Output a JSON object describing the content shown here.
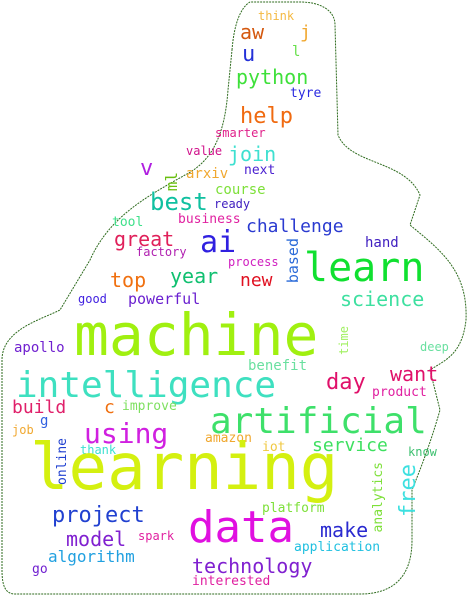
{
  "words": [
    {
      "text": "think",
      "color": "#f4b942"
    },
    {
      "text": "j",
      "color": "#f0a830"
    },
    {
      "text": "aw",
      "color": "#d4580f"
    },
    {
      "text": "l",
      "color": "#66e04a"
    },
    {
      "text": "u",
      "color": "#2431d8"
    },
    {
      "text": "python",
      "color": "#3ee03a"
    },
    {
      "text": "tyre",
      "color": "#2a2ae0"
    },
    {
      "text": "help",
      "color": "#f06a10"
    },
    {
      "text": "smarter",
      "color": "#e0208a"
    },
    {
      "text": "value",
      "color": "#d0108a"
    },
    {
      "text": "join",
      "color": "#3ee0d0"
    },
    {
      "text": "next",
      "color": "#4a20d0"
    },
    {
      "text": "v",
      "color": "#b020e0"
    },
    {
      "text": "ml",
      "color": "#6ac010"
    },
    {
      "text": "arxiv",
      "color": "#f0a830"
    },
    {
      "text": "course",
      "color": "#7ee03a"
    },
    {
      "text": "best",
      "color": "#10c0a0"
    },
    {
      "text": "ready",
      "color": "#4020c0"
    },
    {
      "text": "tool",
      "color": "#3ee08a"
    },
    {
      "text": "business",
      "color": "#e020a0"
    },
    {
      "text": "challenge",
      "color": "#2a3ad0"
    },
    {
      "text": "great",
      "color": "#e0205a"
    },
    {
      "text": "ai",
      "color": "#3020e0"
    },
    {
      "text": "factory",
      "color": "#b020b0"
    },
    {
      "text": "hand",
      "color": "#4020c0"
    },
    {
      "text": "based",
      "color": "#2a6ad8"
    },
    {
      "text": "process",
      "color": "#d020c0"
    },
    {
      "text": "learn",
      "color": "#10e030"
    },
    {
      "text": "year",
      "color": "#10c070"
    },
    {
      "text": "top",
      "color": "#f07010"
    },
    {
      "text": "new",
      "color": "#e01020"
    },
    {
      "text": "good",
      "color": "#4020e0"
    },
    {
      "text": "powerful",
      "color": "#6a20d0"
    },
    {
      "text": "science",
      "color": "#3ee0a0"
    },
    {
      "text": "machine",
      "color": "#a0f010"
    },
    {
      "text": "apollo",
      "color": "#7020d0"
    },
    {
      "text": "time",
      "color": "#a0f060"
    },
    {
      "text": "deep",
      "color": "#6ae0a0"
    },
    {
      "text": "benefit",
      "color": "#6ae0a0"
    },
    {
      "text": "intelligence",
      "color": "#3ee0c0"
    },
    {
      "text": "day",
      "color": "#e0106a"
    },
    {
      "text": "want",
      "color": "#e0106a"
    },
    {
      "text": "product",
      "color": "#e020a0"
    },
    {
      "text": "build",
      "color": "#e0206a"
    },
    {
      "text": "c",
      "color": "#f07010"
    },
    {
      "text": "improve",
      "color": "#7ee060"
    },
    {
      "text": "artificial",
      "color": "#3ee06a"
    },
    {
      "text": "job",
      "color": "#f0a830"
    },
    {
      "text": "g",
      "color": "#3060e0"
    },
    {
      "text": "using",
      "color": "#d020e0"
    },
    {
      "text": "amazon",
      "color": "#f0a830"
    },
    {
      "text": "iot",
      "color": "#f0c840"
    },
    {
      "text": "service",
      "color": "#3ee060"
    },
    {
      "text": "thank",
      "color": "#3ee0d0"
    },
    {
      "text": "online",
      "color": "#2040d0"
    },
    {
      "text": "know",
      "color": "#3ec070"
    },
    {
      "text": "learning",
      "color": "#d4f010"
    },
    {
      "text": "analytics",
      "color": "#7ee03a"
    },
    {
      "text": "free",
      "color": "#3ee0e0"
    },
    {
      "text": "platform",
      "color": "#7ee03a"
    },
    {
      "text": "project",
      "color": "#2040d0"
    },
    {
      "text": "data",
      "color": "#e010e0"
    },
    {
      "text": "make",
      "color": "#2a2ad0"
    },
    {
      "text": "model",
      "color": "#8020d0"
    },
    {
      "text": "spark",
      "color": "#e020a0"
    },
    {
      "text": "application",
      "color": "#20c0e0"
    },
    {
      "text": "algorithm",
      "color": "#20a0e0"
    },
    {
      "text": "go",
      "color": "#7020d0"
    },
    {
      "text": "technology",
      "color": "#8020d0"
    },
    {
      "text": "interested",
      "color": "#e020a0"
    }
  ]
}
